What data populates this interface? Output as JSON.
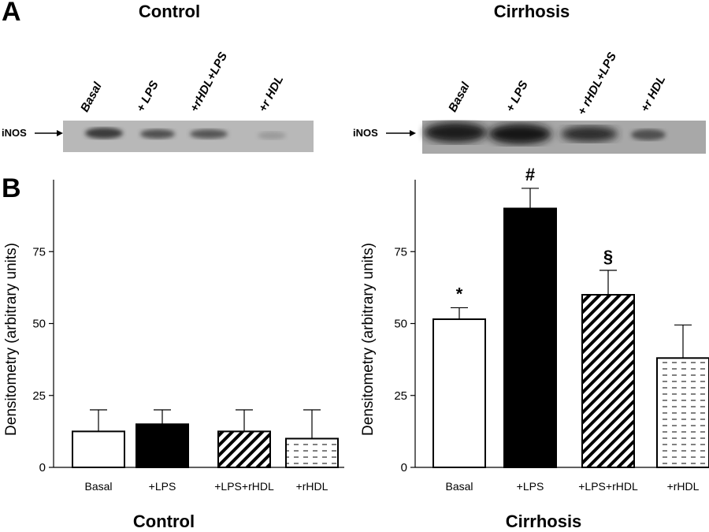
{
  "panels": {
    "a": "A",
    "b": "B"
  },
  "blot": {
    "marker_label": "iNOS",
    "control": {
      "title": "Control",
      "lanes": [
        "Basal",
        "+ LPS",
        "+rHDL+LPS",
        "+r HDL"
      ]
    },
    "cirrhosis": {
      "title": "Cirrhosis",
      "lanes": [
        "Basal",
        "+ LPS",
        "+ rHDL+LPS",
        "+r HDL"
      ]
    }
  },
  "chart_data": [
    {
      "type": "bar",
      "title": "Control",
      "ylabel": "Densitometry (arbitrary units)",
      "ylim": [
        0,
        100
      ],
      "yticks": [
        0,
        25,
        50,
        75
      ],
      "categories": [
        "Basal",
        "+LPS",
        "+LPS+rHDL",
        "+rHDL"
      ],
      "values": [
        12.5,
        15,
        12.5,
        10
      ],
      "errors": [
        7.5,
        5,
        7.5,
        10
      ],
      "fills": [
        "white",
        "black",
        "diagonal-hatch",
        "dash-pattern"
      ],
      "annotations": [
        "",
        "",
        "",
        ""
      ]
    },
    {
      "type": "bar",
      "title": "Cirrhosis",
      "ylabel": "Densitometry (arbitrary units)",
      "ylim": [
        0,
        100
      ],
      "yticks": [
        0,
        25,
        50,
        75
      ],
      "categories": [
        "Basal",
        "+LPS",
        "+LPS+rHDL",
        "+rHDL"
      ],
      "values": [
        51.5,
        90,
        60,
        38
      ],
      "errors": [
        4,
        7,
        8.5,
        11.5
      ],
      "fills": [
        "white",
        "black",
        "diagonal-hatch",
        "dash-pattern"
      ],
      "annotations": [
        "*",
        "#",
        "§",
        ""
      ]
    }
  ]
}
